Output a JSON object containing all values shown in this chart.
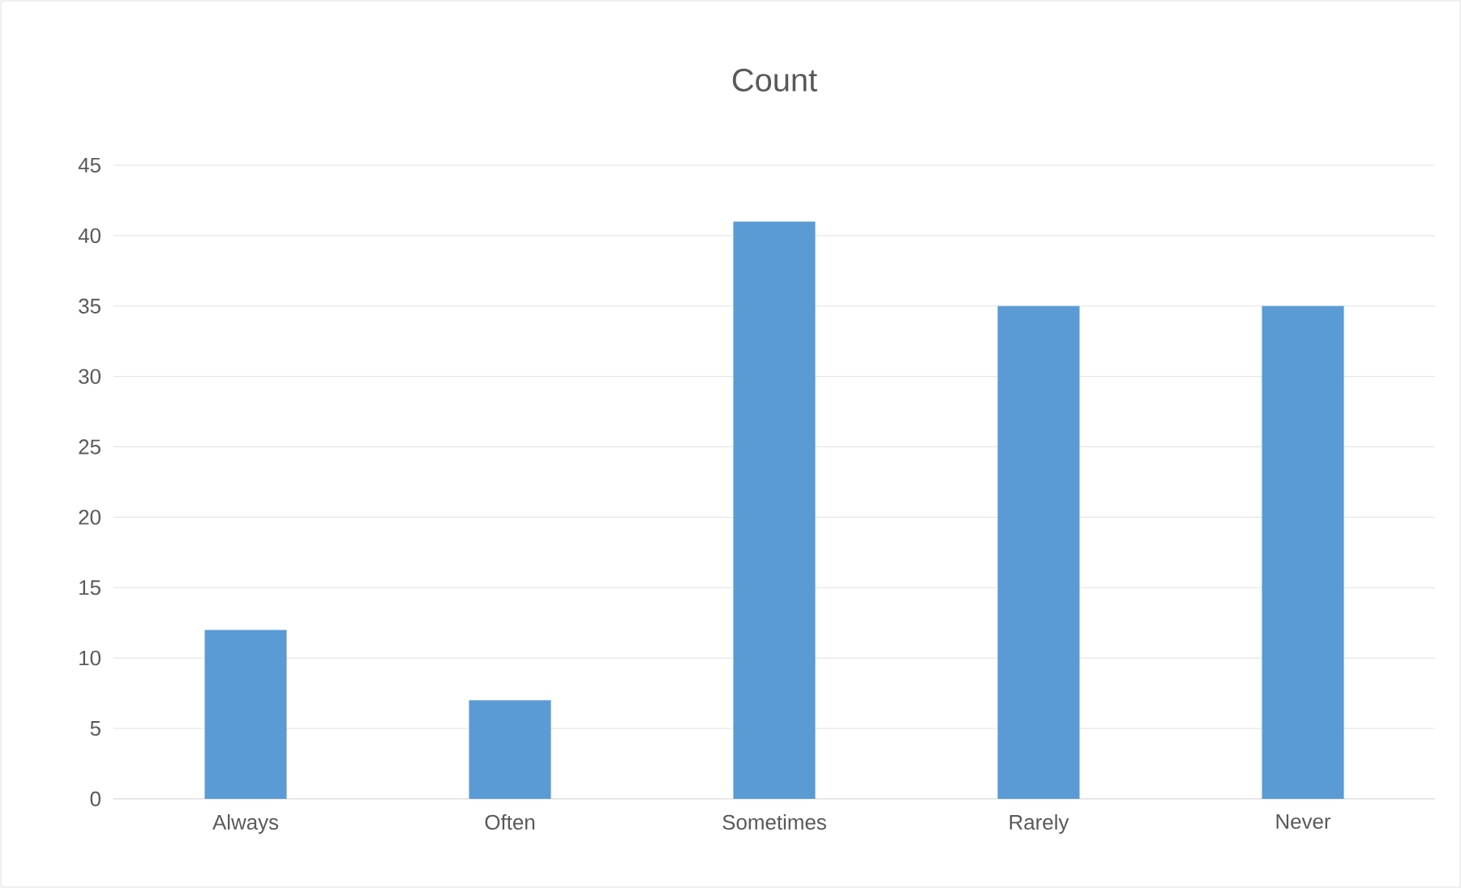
{
  "chart_data": {
    "type": "bar",
    "title": "Count",
    "categories": [
      "Always",
      "Often",
      "Sometimes",
      "Rarely",
      "Never"
    ],
    "values": [
      12,
      7,
      41,
      35,
      35
    ],
    "color": "#5b9bd5",
    "ylim": [
      0,
      45
    ],
    "yticks": [
      0,
      5,
      10,
      15,
      20,
      25,
      30,
      35,
      40,
      45
    ],
    "grid": "y"
  }
}
